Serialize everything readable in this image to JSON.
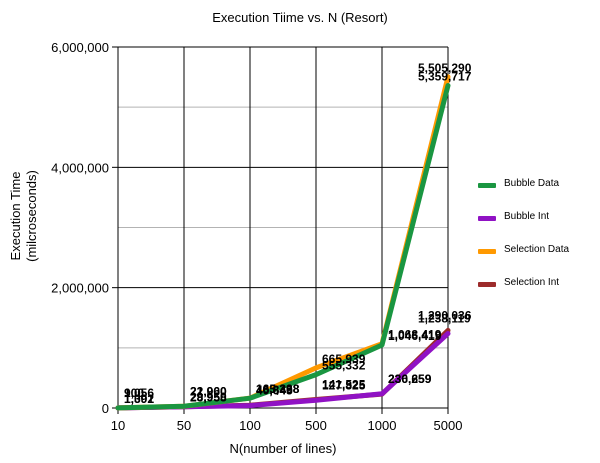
{
  "chart_data": {
    "type": "line",
    "title": "Execution Tiime vs. N (Resort)",
    "xlabel": "N(number of lines)",
    "ylabel_line1": "Execution Time",
    "ylabel_line2": "(milcroseconds)",
    "categories": [
      "10",
      "50",
      "100",
      "500",
      "1000",
      "5000"
    ],
    "ylim": [
      0,
      6000000
    ],
    "yticks": [
      "0",
      "2,000,000",
      "4,000,000",
      "6,000,000"
    ],
    "ytick_values": [
      0,
      2000000,
      4000000,
      6000000
    ],
    "grid": true,
    "legend_position": "right",
    "series": [
      {
        "name": "Bubble Data",
        "color": "#1a9641",
        "values": [
          1092,
          29950,
          163338,
          555332,
          1046419,
          5359717
        ],
        "labels": [
          "1,092",
          "29,950",
          "163,338",
          "555,332",
          "1,046,419",
          "5,359,717"
        ]
      },
      {
        "name": "Bubble Int",
        "color": "#9012c4",
        "values": [
          900,
          21900,
          40645,
          127825,
          236259,
          1238119
        ],
        "labels": [
          "900",
          "21,900",
          "40,645",
          "127,825",
          "236,259",
          "1,238,119"
        ]
      },
      {
        "name": "Selection Data",
        "color": "#ff9900",
        "values": [
          1301,
          28958,
          165268,
          665939,
          1068419,
          5505290
        ],
        "labels": [
          "1,301",
          "28,958",
          "165,268",
          "665,939",
          "1,068,419",
          "5,505,290"
        ]
      },
      {
        "name": "Selection Int",
        "color": "#9c2b2b",
        "values": [
          1056,
          22060,
          46849,
          141525,
          230659,
          1290036
        ],
        "labels": [
          "1,056",
          "22,060",
          "46,849",
          "141,525",
          "230,659",
          "1,290,036"
        ]
      }
    ]
  }
}
